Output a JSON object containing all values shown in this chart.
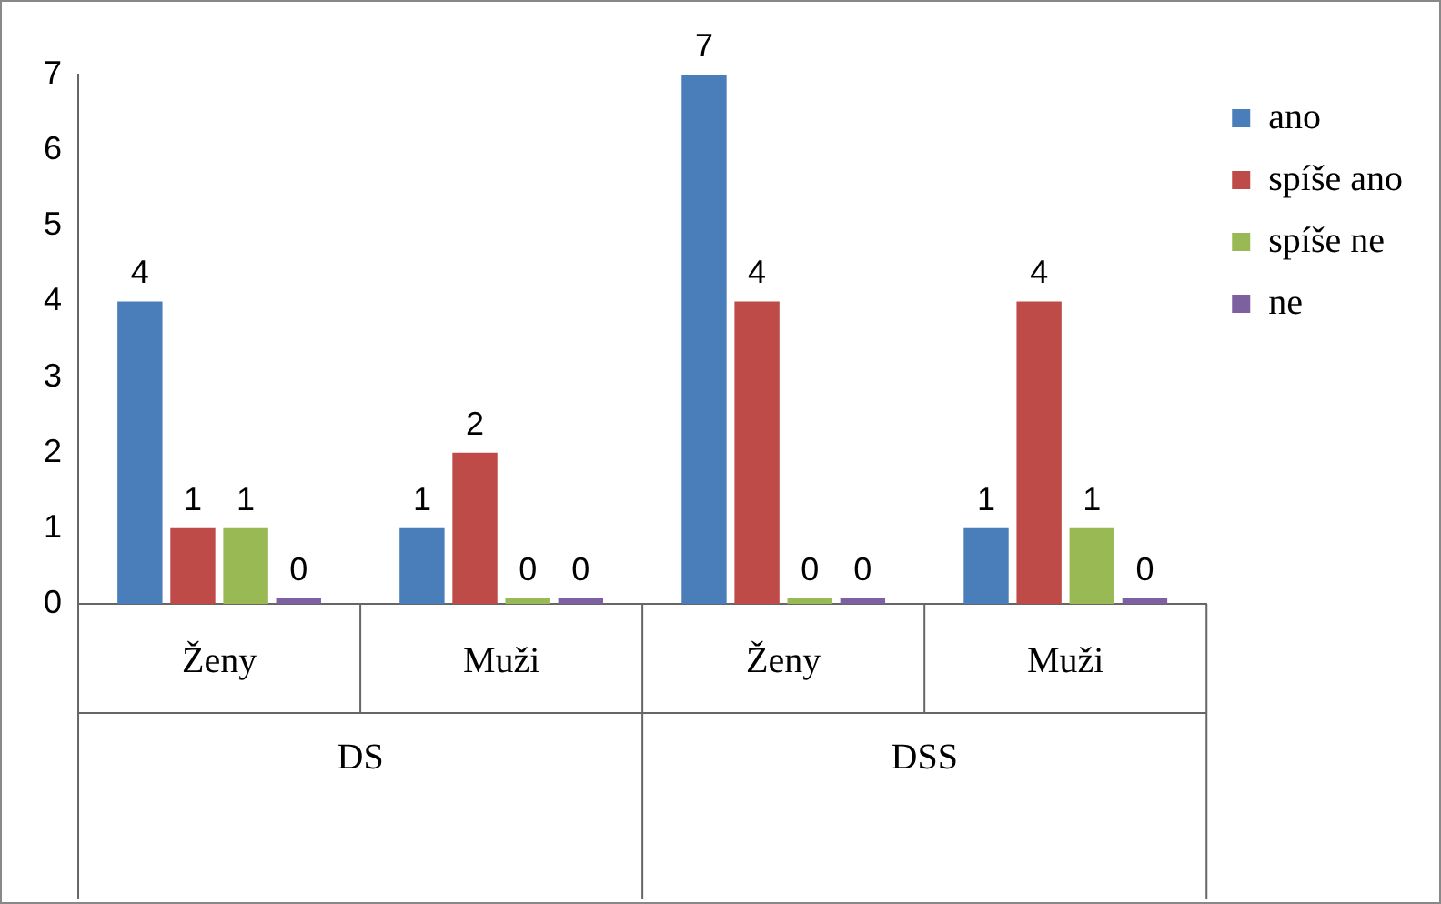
{
  "chart_data": {
    "type": "bar",
    "categories": [
      "Ženy",
      "Muži",
      "Ženy",
      "Muži"
    ],
    "series": [
      {
        "name": "ano",
        "color": "#4a7ebb",
        "values": [
          4,
          1,
          7,
          1
        ]
      },
      {
        "name": "spíše ano",
        "color": "#be4b48",
        "values": [
          1,
          2,
          4,
          4
        ]
      },
      {
        "name": "spíše ne",
        "color": "#98b954",
        "values": [
          1,
          0,
          0,
          1
        ]
      },
      {
        "name": "ne",
        "color": "#7d60a0",
        "values": [
          0,
          0,
          0,
          0
        ]
      }
    ],
    "annotations": [
      "DS",
      "DSS"
    ],
    "ylim": [
      0,
      7
    ],
    "yticks": [
      0,
      1,
      2,
      3,
      4,
      5,
      6,
      7
    ],
    "grid": false,
    "legend": "top right",
    "data_labels": true
  }
}
